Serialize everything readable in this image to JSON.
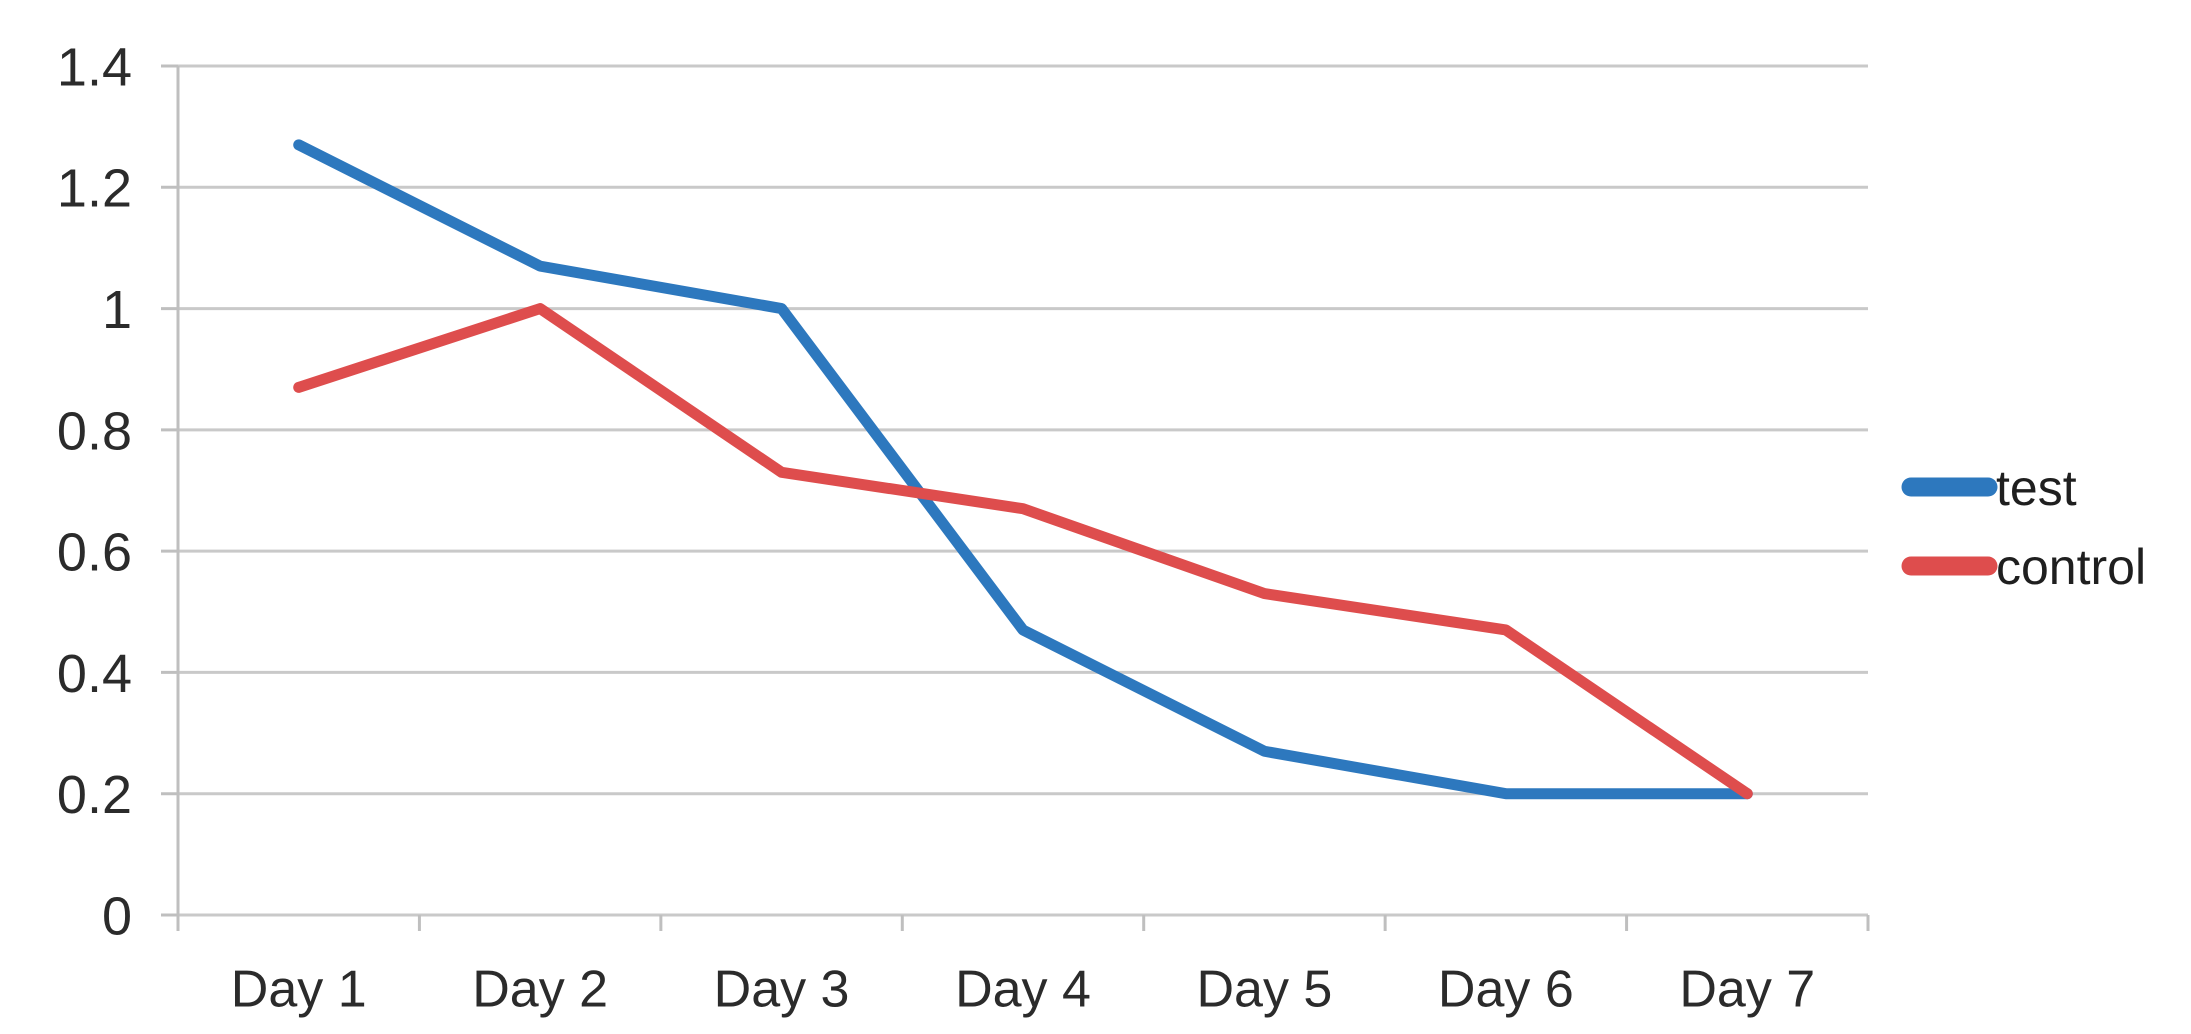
{
  "chart_data": {
    "type": "line",
    "categories": [
      "Day 1",
      "Day 2",
      "Day 3",
      "Day 4",
      "Day 5",
      "Day 6",
      "Day 7"
    ],
    "series": [
      {
        "name": "test",
        "color": "#2d78be",
        "values": [
          1.27,
          1.07,
          1.0,
          0.47,
          0.27,
          0.2,
          0.2
        ]
      },
      {
        "name": "control",
        "color": "#de4d4d",
        "values": [
          0.87,
          1.0,
          0.73,
          0.67,
          0.53,
          0.47,
          0.2
        ]
      }
    ],
    "title": "",
    "xlabel": "",
    "ylabel": "",
    "ylim": [
      0,
      1.4
    ],
    "ytick_interval": 0.2,
    "ytick_labels": [
      "0",
      "0.2",
      "0.4",
      "0.6",
      "0.8",
      "1",
      "1.2",
      "1.4"
    ],
    "grid": true,
    "legend_position": "right"
  },
  "colors": {
    "background": "#ffffff",
    "gridline": "#c9c9c9",
    "axis": "#bfbfbf",
    "tick": "#bfbfbf",
    "axis_text": "#2b2b2b",
    "legend_text": "#1f1f1f"
  }
}
